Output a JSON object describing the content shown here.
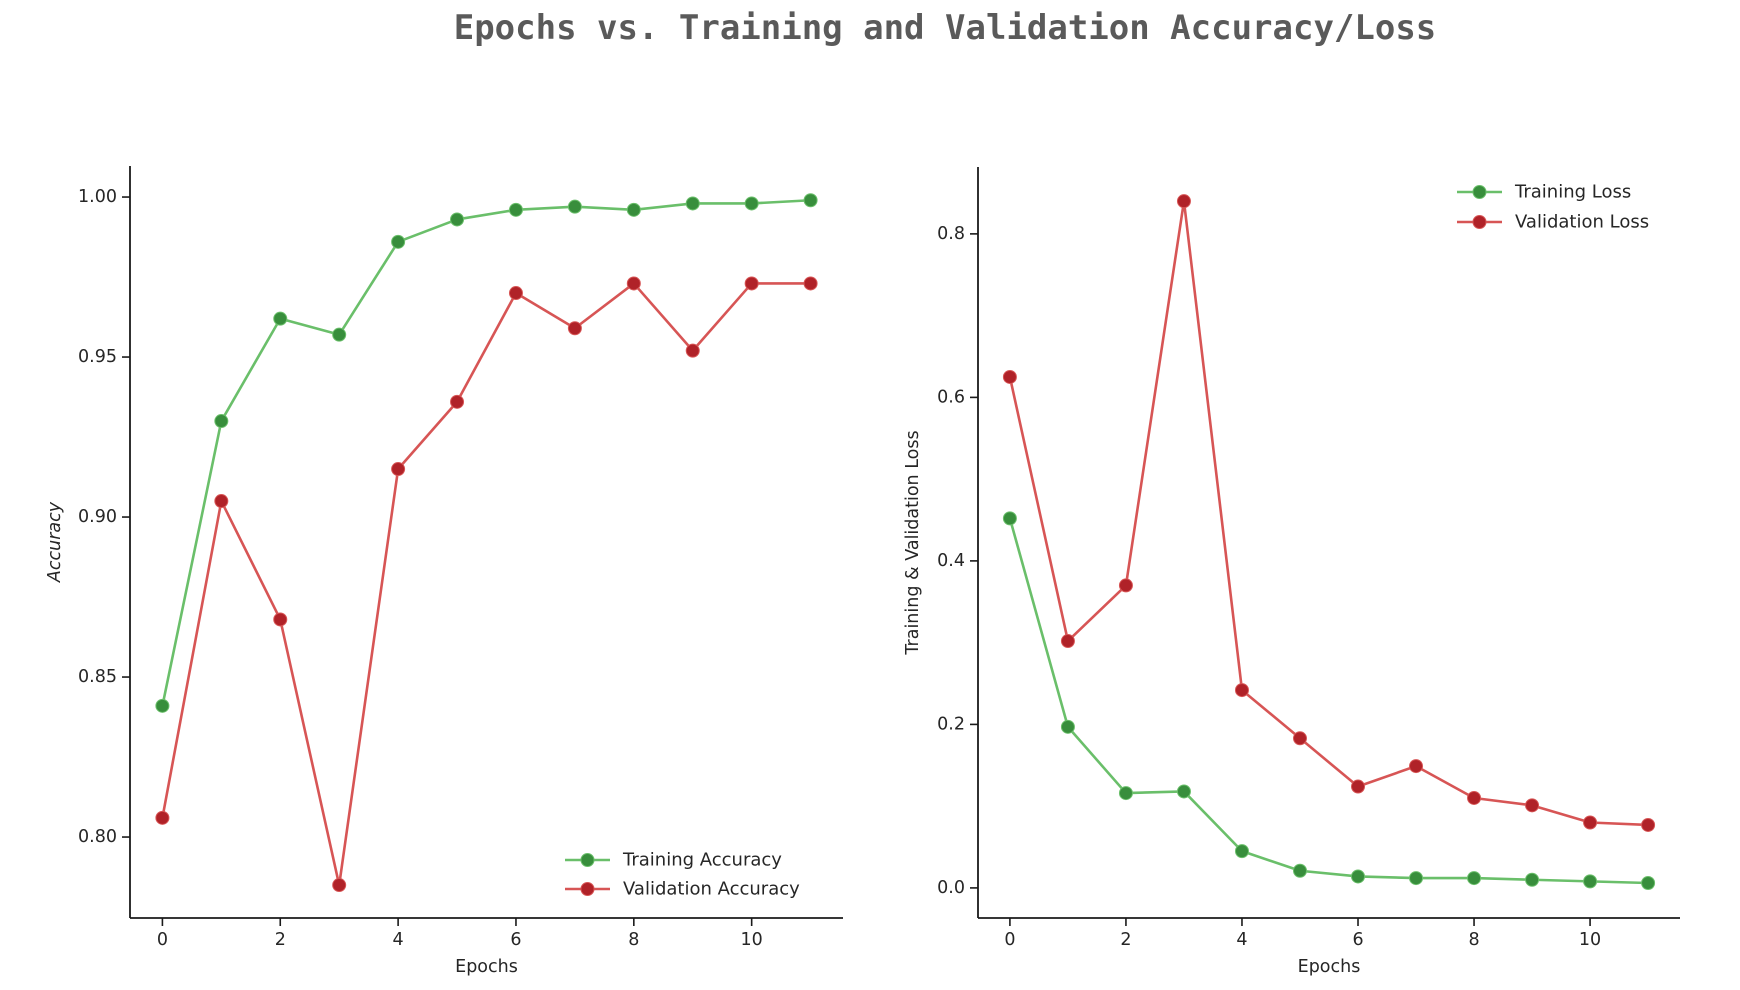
{
  "title": "Epochs vs. Training and Validation Accuracy/Loss",
  "colors": {
    "title_text": "#5a5a5a",
    "axis_text": "#262626",
    "spine": "#1a1a1a",
    "train_line": "#6abf6a",
    "train_marker": "#388e3c",
    "val_line": "#d75555",
    "val_marker": "#b02228",
    "background": "#ffffff"
  },
  "chart_data": [
    {
      "type": "line",
      "xlabel": "Epochs",
      "ylabel": "Accuracy",
      "x": [
        0,
        1,
        2,
        3,
        4,
        5,
        6,
        7,
        8,
        9,
        10,
        11
      ],
      "series": [
        {
          "name": "Training Accuracy",
          "line_color": "#6abf6a",
          "marker_color": "#388e3c",
          "values": [
            0.841,
            0.93,
            0.962,
            0.957,
            0.986,
            0.993,
            0.996,
            0.997,
            0.996,
            0.998,
            0.998,
            0.999
          ]
        },
        {
          "name": "Validation Accuracy",
          "line_color": "#d75555",
          "marker_color": "#b02228",
          "values": [
            0.806,
            0.905,
            0.868,
            0.785,
            0.915,
            0.936,
            0.97,
            0.959,
            0.973,
            0.952,
            0.973,
            0.973
          ]
        }
      ],
      "xticks": [
        0,
        2,
        4,
        6,
        8,
        10
      ],
      "yticks": [
        {
          "value": 1.0,
          "label": "1.00"
        },
        {
          "value": 0.95,
          "label": "0.95"
        },
        {
          "value": 0.9,
          "label": "0.90"
        },
        {
          "value": 0.85,
          "label": "0.85"
        },
        {
          "value": 0.8,
          "label": "0.80"
        }
      ],
      "xlim": [
        -0.55,
        11.55
      ],
      "ylim": [
        0.7747,
        1.0097
      ],
      "grid": false,
      "legend_position": "lower right"
    },
    {
      "type": "line",
      "xlabel": "Epochs",
      "ylabel": "Training & Validation Loss",
      "x": [
        0,
        1,
        2,
        3,
        4,
        5,
        6,
        7,
        8,
        9,
        10,
        11
      ],
      "series": [
        {
          "name": "Training Loss",
          "line_color": "#6abf6a",
          "marker_color": "#388e3c",
          "values": [
            0.452,
            0.197,
            0.116,
            0.118,
            0.045,
            0.021,
            0.014,
            0.012,
            0.012,
            0.01,
            0.008,
            0.006
          ]
        },
        {
          "name": "Validation Loss",
          "line_color": "#d75555",
          "marker_color": "#b02228",
          "values": [
            0.625,
            0.302,
            0.37,
            0.84,
            0.242,
            0.183,
            0.124,
            0.149,
            0.11,
            0.101,
            0.08,
            0.077
          ]
        }
      ],
      "xticks": [
        0,
        2,
        4,
        6,
        8,
        10
      ],
      "yticks": [
        {
          "value": 0.8,
          "label": "0.8"
        },
        {
          "value": 0.6,
          "label": "0.6"
        },
        {
          "value": 0.4,
          "label": "0.4"
        },
        {
          "value": 0.2,
          "label": "0.2"
        },
        {
          "value": 0.0,
          "label": "0.0"
        }
      ],
      "xlim": [
        -0.55,
        11.55
      ],
      "ylim": [
        -0.0368,
        0.8818
      ],
      "grid": false,
      "legend_position": "upper right"
    }
  ]
}
